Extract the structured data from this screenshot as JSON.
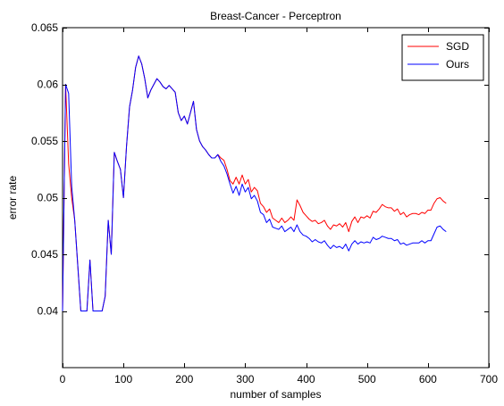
{
  "chart_data": {
    "type": "line",
    "title": "Breast-Cancer - Perceptron",
    "xlabel": "number of samples",
    "ylabel": "error rate",
    "xlim": [
      0,
      700
    ],
    "ylim": [
      0.035,
      0.065
    ],
    "xticks": [
      0,
      100,
      200,
      300,
      400,
      500,
      600,
      700
    ],
    "yticks": [
      0.04,
      0.045,
      0.05,
      0.055,
      0.06,
      0.065
    ],
    "xtick_labels": [
      "0",
      "100",
      "200",
      "300",
      "400",
      "500",
      "600",
      "700"
    ],
    "ytick_labels": [
      "0.04",
      "0.045",
      "0.05",
      "0.055",
      "0.06",
      "0.065"
    ],
    "grid": false,
    "legend_position": "top-right",
    "series": [
      {
        "name": "SGD",
        "color": "#ff0000",
        "x": [
          0,
          5,
          10,
          15,
          20,
          25,
          30,
          35,
          40,
          45,
          50,
          55,
          60,
          65,
          70,
          75,
          80,
          85,
          90,
          95,
          100,
          105,
          110,
          115,
          120,
          125,
          130,
          135,
          140,
          145,
          150,
          155,
          160,
          165,
          170,
          175,
          180,
          185,
          190,
          195,
          200,
          205,
          210,
          215,
          220,
          225,
          230,
          235,
          240,
          245,
          250,
          255,
          260,
          265,
          270,
          275,
          280,
          285,
          290,
          295,
          300,
          305,
          310,
          315,
          320,
          325,
          330,
          335,
          340,
          345,
          350,
          355,
          360,
          365,
          370,
          375,
          380,
          385,
          390,
          395,
          400,
          405,
          410,
          415,
          420,
          425,
          430,
          435,
          440,
          445,
          450,
          455,
          460,
          465,
          470,
          475,
          480,
          485,
          490,
          495,
          500,
          505,
          510,
          515,
          520,
          525,
          530,
          535,
          540,
          545,
          550,
          555,
          560,
          565,
          570,
          575,
          580,
          585,
          590,
          595,
          600,
          605,
          610,
          615,
          620,
          625,
          630
        ],
        "values": [
          0.04,
          0.06,
          0.053,
          0.05,
          0.048,
          0.044,
          0.04,
          0.04,
          0.04,
          0.0445,
          0.04,
          0.04,
          0.04,
          0.04,
          0.0413,
          0.048,
          0.045,
          0.054,
          0.0532,
          0.0525,
          0.05,
          0.0545,
          0.058,
          0.0595,
          0.0615,
          0.0625,
          0.0618,
          0.0605,
          0.0588,
          0.0595,
          0.06,
          0.0605,
          0.0602,
          0.0598,
          0.0596,
          0.0599,
          0.0596,
          0.0593,
          0.0575,
          0.0568,
          0.0572,
          0.0565,
          0.0575,
          0.0585,
          0.056,
          0.055,
          0.0545,
          0.0542,
          0.0538,
          0.0535,
          0.0535,
          0.0538,
          0.0535,
          0.0533,
          0.0525,
          0.0515,
          0.0512,
          0.0518,
          0.0512,
          0.052,
          0.0512,
          0.0516,
          0.0505,
          0.0509,
          0.0506,
          0.0495,
          0.0492,
          0.0487,
          0.049,
          0.0482,
          0.048,
          0.0478,
          0.0482,
          0.0478,
          0.048,
          0.0483,
          0.048,
          0.0498,
          0.0493,
          0.0487,
          0.0484,
          0.0481,
          0.0479,
          0.048,
          0.0477,
          0.0478,
          0.048,
          0.0475,
          0.0472,
          0.0476,
          0.0475,
          0.0477,
          0.0474,
          0.0478,
          0.047,
          0.0479,
          0.0483,
          0.0478,
          0.0483,
          0.0482,
          0.0484,
          0.0482,
          0.0488,
          0.0487,
          0.049,
          0.0494,
          0.0492,
          0.0491,
          0.0491,
          0.0488,
          0.049,
          0.0485,
          0.0487,
          0.0483,
          0.0485,
          0.0486,
          0.0486,
          0.0485,
          0.0487,
          0.0486,
          0.0489,
          0.0489,
          0.0495,
          0.0499,
          0.05,
          0.0497,
          0.0495
        ]
      },
      {
        "name": "Ours",
        "color": "#0000ff",
        "x": [
          0,
          5,
          10,
          15,
          20,
          25,
          30,
          35,
          40,
          45,
          50,
          55,
          60,
          65,
          70,
          75,
          80,
          85,
          90,
          95,
          100,
          105,
          110,
          115,
          120,
          125,
          130,
          135,
          140,
          145,
          150,
          155,
          160,
          165,
          170,
          175,
          180,
          185,
          190,
          195,
          200,
          205,
          210,
          215,
          220,
          225,
          230,
          235,
          240,
          245,
          250,
          255,
          260,
          265,
          270,
          275,
          280,
          285,
          290,
          295,
          300,
          305,
          310,
          315,
          320,
          325,
          330,
          335,
          340,
          345,
          350,
          355,
          360,
          365,
          370,
          375,
          380,
          385,
          390,
          395,
          400,
          405,
          410,
          415,
          420,
          425,
          430,
          435,
          440,
          445,
          450,
          455,
          460,
          465,
          470,
          475,
          480,
          485,
          490,
          495,
          500,
          505,
          510,
          515,
          520,
          525,
          530,
          535,
          540,
          545,
          550,
          555,
          560,
          565,
          570,
          575,
          580,
          585,
          590,
          595,
          600,
          605,
          610,
          615,
          620,
          625,
          630
        ],
        "values": [
          0.04,
          0.06,
          0.0592,
          0.051,
          0.048,
          0.044,
          0.04,
          0.04,
          0.04,
          0.0445,
          0.04,
          0.04,
          0.04,
          0.04,
          0.0413,
          0.048,
          0.045,
          0.054,
          0.0532,
          0.0525,
          0.05,
          0.0545,
          0.058,
          0.0595,
          0.0615,
          0.0625,
          0.0618,
          0.0605,
          0.0588,
          0.0595,
          0.06,
          0.0605,
          0.0602,
          0.0598,
          0.0596,
          0.0599,
          0.0596,
          0.0593,
          0.0575,
          0.0568,
          0.0572,
          0.0565,
          0.0575,
          0.0585,
          0.056,
          0.055,
          0.0545,
          0.0542,
          0.0538,
          0.0535,
          0.0535,
          0.0538,
          0.0532,
          0.0528,
          0.0521,
          0.0512,
          0.0504,
          0.051,
          0.0502,
          0.0512,
          0.0505,
          0.0509,
          0.0499,
          0.0502,
          0.0497,
          0.0487,
          0.0485,
          0.0478,
          0.0481,
          0.0474,
          0.0473,
          0.0472,
          0.0475,
          0.047,
          0.0472,
          0.0474,
          0.047,
          0.0476,
          0.047,
          0.0467,
          0.0466,
          0.0464,
          0.0461,
          0.0463,
          0.0461,
          0.046,
          0.0462,
          0.0458,
          0.0455,
          0.0458,
          0.0456,
          0.0457,
          0.0455,
          0.0459,
          0.0453,
          0.0459,
          0.0462,
          0.0459,
          0.0461,
          0.046,
          0.0461,
          0.046,
          0.0465,
          0.0463,
          0.0464,
          0.0466,
          0.0465,
          0.0464,
          0.0464,
          0.0462,
          0.0463,
          0.0459,
          0.046,
          0.0458,
          0.0459,
          0.046,
          0.046,
          0.046,
          0.0462,
          0.046,
          0.0462,
          0.0462,
          0.0468,
          0.0474,
          0.0475,
          0.0472,
          0.047
        ]
      }
    ]
  }
}
